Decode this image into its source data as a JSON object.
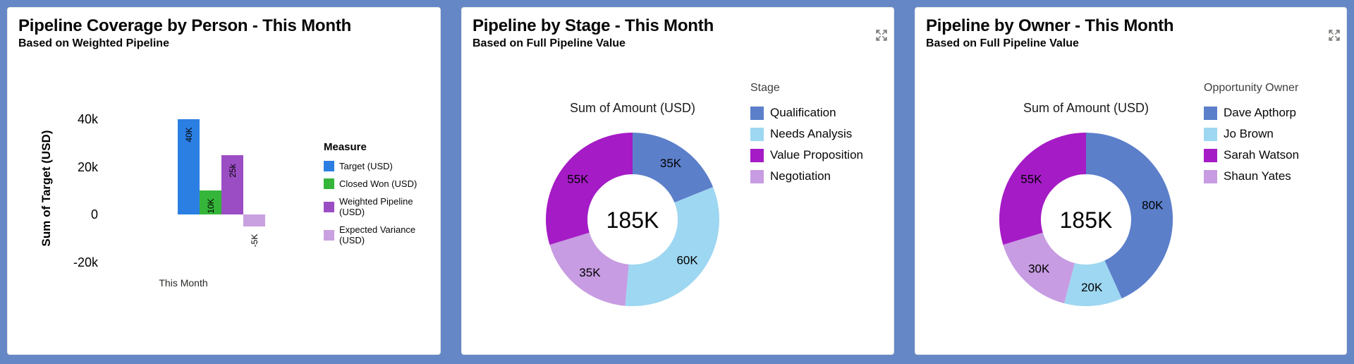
{
  "page": {
    "background_color": "#6587c6"
  },
  "chart_data": [
    {
      "type": "bar",
      "title": "Pipeline Coverage by Person - This Month",
      "subtitle": "Based on Weighted Pipeline",
      "categories": [
        "This Month"
      ],
      "xlabel": "",
      "ylabel": "Sum of Target (USD)",
      "ylim": [
        -25000,
        45000
      ],
      "grid": false,
      "legend_title": "Measure",
      "legend_position": "right",
      "yticks": [
        {
          "value": 40000,
          "label": "40k"
        },
        {
          "value": 20000,
          "label": "20k"
        },
        {
          "value": 0,
          "label": "0"
        },
        {
          "value": -20000,
          "label": "-20k"
        }
      ],
      "series": [
        {
          "name": "Target (USD)",
          "value": 40000,
          "label": "40K",
          "color": "#2b7fe3"
        },
        {
          "name": "Closed Won (USD)",
          "value": 10000,
          "label": "10K",
          "color": "#35b53a"
        },
        {
          "name": "Weighted Pipeline (USD)",
          "value": 25000,
          "label": "25k",
          "color": "#9b4dc4"
        },
        {
          "name": "Expected Variance (USD)",
          "value": -5000,
          "label": "-5K",
          "color": "#c9a1e0"
        }
      ]
    },
    {
      "type": "donut",
      "title": "Pipeline by Stage - This Month",
      "subtitle": "Based on Full Pipeline Value",
      "chart_label": "Sum of Amount (USD)",
      "center_label": "185K",
      "total": 185000,
      "legend_title": "Stage",
      "legend_position": "right",
      "draw_order": [
        0,
        1,
        3,
        2
      ],
      "slices": [
        {
          "name": "Qualification",
          "value": 35000,
          "label": "35K",
          "color": "#5c7fca"
        },
        {
          "name": "Needs Analysis",
          "value": 60000,
          "label": "60K",
          "color": "#9ed7f1"
        },
        {
          "name": "Value Proposition",
          "value": 55000,
          "label": "55K",
          "color": "#a51bc6"
        },
        {
          "name": "Negotiation",
          "value": 35000,
          "label": "35K",
          "color": "#c79ce2"
        }
      ]
    },
    {
      "type": "donut",
      "title": "Pipeline by Owner - This Month",
      "subtitle": "Based on Full Pipeline Value",
      "chart_label": "Sum of Amount (USD)",
      "center_label": "185K",
      "total": 185000,
      "legend_title": "Opportunity Owner",
      "legend_position": "right",
      "draw_order": [
        0,
        1,
        3,
        2
      ],
      "slices": [
        {
          "name": "Dave Apthorp",
          "value": 80000,
          "label": "80K",
          "color": "#5c7fca"
        },
        {
          "name": "Jo Brown",
          "value": 20000,
          "label": "20K",
          "color": "#9ed7f1"
        },
        {
          "name": "Sarah Watson",
          "value": 55000,
          "label": "55K",
          "color": "#a51bc6"
        },
        {
          "name": "Shaun Yates",
          "value": 30000,
          "label": "30K",
          "color": "#c79ce2"
        }
      ]
    }
  ]
}
